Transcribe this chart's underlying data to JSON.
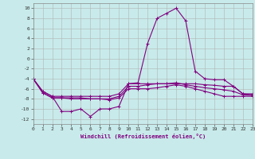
{
  "x": [
    0,
    1,
    2,
    3,
    4,
    5,
    6,
    7,
    8,
    9,
    10,
    11,
    12,
    13,
    14,
    15,
    16,
    17,
    18,
    19,
    20,
    21,
    22,
    23
  ],
  "line1": [
    -4.0,
    -6.5,
    -7.5,
    -10.5,
    -10.5,
    -10.0,
    -11.5,
    -10.0,
    -10.0,
    -9.5,
    -5.0,
    -4.8,
    3.0,
    8.0,
    9.0,
    10.0,
    7.5,
    -2.5,
    -4.0,
    -4.2,
    -4.2,
    -5.5,
    -7.0,
    -7.0
  ],
  "line2": [
    -4.0,
    -6.5,
    -7.5,
    -7.5,
    -7.5,
    -7.5,
    -7.5,
    -7.5,
    -7.5,
    -7.0,
    -5.0,
    -5.0,
    -5.0,
    -5.0,
    -5.0,
    -5.0,
    -5.0,
    -5.0,
    -5.2,
    -5.3,
    -5.5,
    -5.5,
    -7.0,
    -7.2
  ],
  "line3": [
    -4.0,
    -6.8,
    -7.8,
    -7.8,
    -7.8,
    -7.8,
    -8.0,
    -8.0,
    -8.0,
    -7.5,
    -5.5,
    -5.5,
    -5.2,
    -5.0,
    -5.0,
    -4.8,
    -5.2,
    -5.5,
    -5.8,
    -6.0,
    -6.2,
    -6.5,
    -7.2,
    -7.3
  ],
  "line4": [
    -4.0,
    -6.8,
    -7.8,
    -7.8,
    -8.0,
    -8.0,
    -8.0,
    -8.0,
    -8.2,
    -7.8,
    -6.0,
    -6.0,
    -6.0,
    -5.8,
    -5.5,
    -5.2,
    -5.5,
    -6.0,
    -6.5,
    -7.0,
    -7.5,
    -7.5,
    -7.5,
    -7.5
  ],
  "xlabel": "Windchill (Refroidissement éolien,°C)",
  "ylim": [
    -13,
    11
  ],
  "xlim": [
    0,
    23
  ],
  "yticks": [
    -12,
    -10,
    -8,
    -6,
    -4,
    -2,
    0,
    2,
    4,
    6,
    8,
    10
  ],
  "xticks": [
    0,
    1,
    2,
    3,
    4,
    5,
    6,
    7,
    8,
    9,
    10,
    11,
    12,
    13,
    14,
    15,
    16,
    17,
    18,
    19,
    20,
    21,
    22,
    23
  ],
  "line_color": "#800080",
  "bg_color": "#c8eaea",
  "grid_color": "#b0b0b0",
  "marker": "+",
  "markersize": 3,
  "linewidth": 0.8,
  "tick_fontsize": 4.5,
  "xlabel_fontsize": 5.0
}
